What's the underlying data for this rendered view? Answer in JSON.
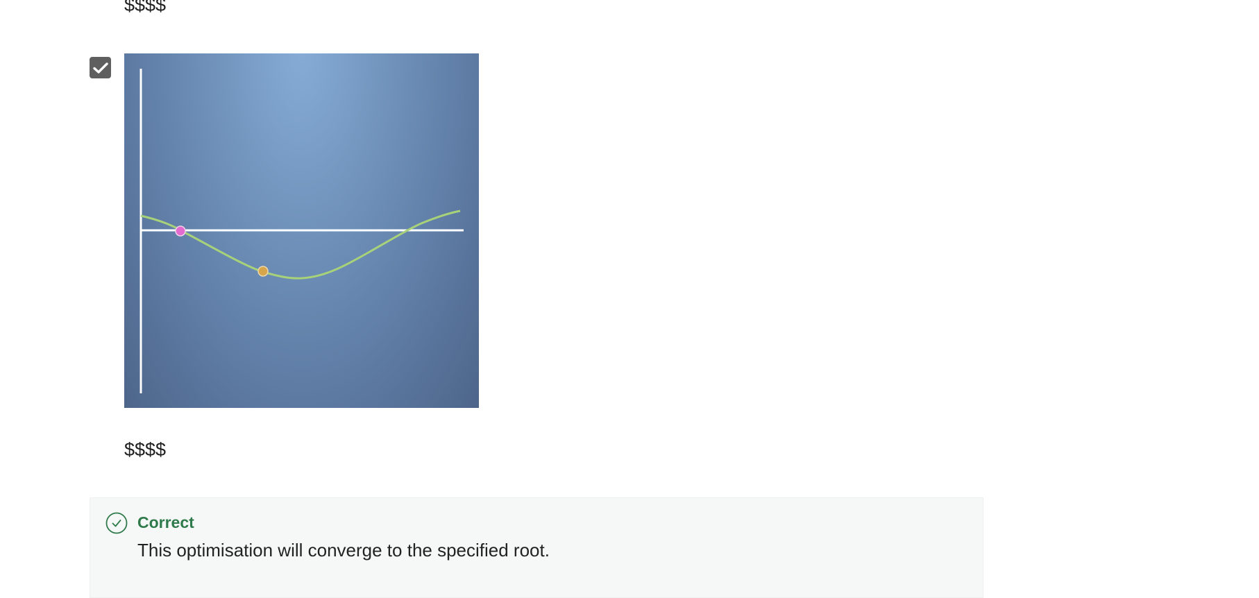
{
  "options": {
    "top_label": "$$$$",
    "bottom_label": "$$$$",
    "checkbox_checked": true
  },
  "colors": {
    "curve": "#a8d27a",
    "axes": "#ffffff",
    "point_start": "#e36bd0",
    "point_end": "#d8a64a",
    "feedback_accent": "#2f7a4a",
    "checkbox": "#5f5f5f"
  },
  "feedback": {
    "status": "Correct",
    "message": "This optimisation will converge to the specified root."
  },
  "icons": {
    "checkbox": "checkmark-icon",
    "feedback": "check-circle-icon"
  }
}
